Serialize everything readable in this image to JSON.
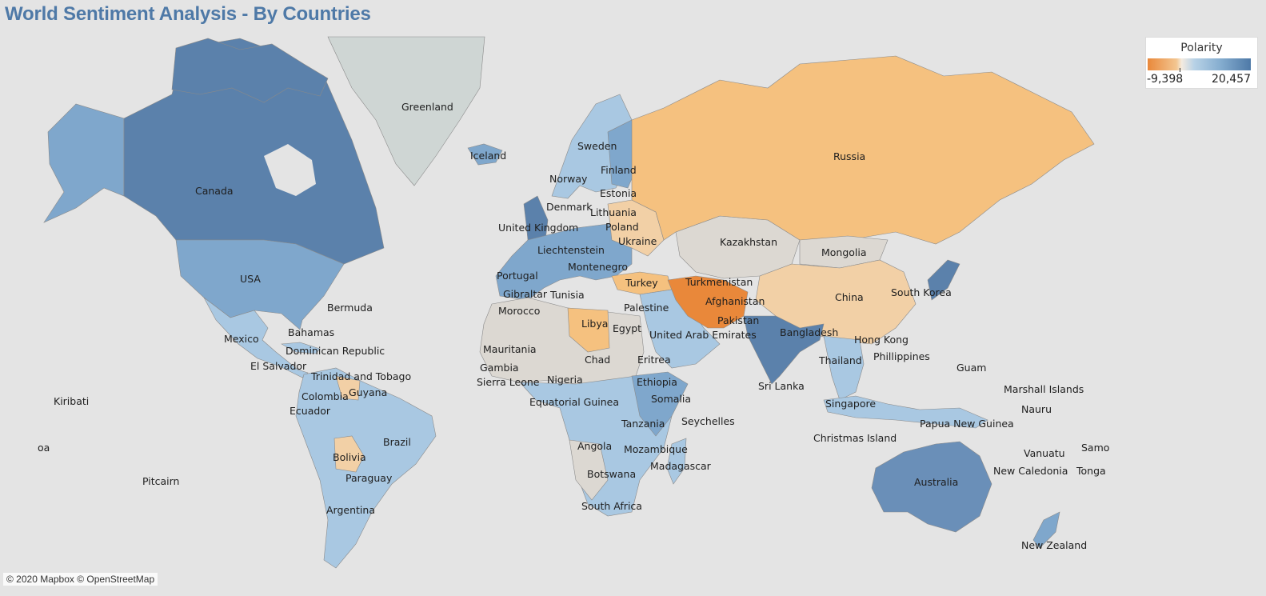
{
  "title": "World Sentiment Analysis - By Countries",
  "legend": {
    "title": "Polarity",
    "min": "-9,398",
    "max": "20,457"
  },
  "attribution": "© 2020 Mapbox © OpenStreetMap",
  "colors": {
    "strong_positive": "#5b81ab",
    "positive": "#7fa7cc",
    "mild_positive": "#a9c8e2",
    "neutral": "#dcd8d2",
    "mild_negative": "#f2d0a6",
    "negative": "#f5c17f",
    "strong_negative": "#e9883a",
    "greenland": "#cfd6d4"
  },
  "countries": [
    {
      "name": "Greenland"
    },
    {
      "name": "Iceland"
    },
    {
      "name": "Canada"
    },
    {
      "name": "USA"
    },
    {
      "name": "Bermuda"
    },
    {
      "name": "Mexico"
    },
    {
      "name": "Bahamas"
    },
    {
      "name": "Dominican Republic"
    },
    {
      "name": "El Salvador"
    },
    {
      "name": "Trinidad and Tobago"
    },
    {
      "name": "Colombia"
    },
    {
      "name": "Guyana"
    },
    {
      "name": "Ecuador"
    },
    {
      "name": "Brazil"
    },
    {
      "name": "Bolivia"
    },
    {
      "name": "Paraguay"
    },
    {
      "name": "Argentina"
    },
    {
      "name": "Kiribati"
    },
    {
      "name": "Pitcairn"
    },
    {
      "name": "Sweden"
    },
    {
      "name": "Finland"
    },
    {
      "name": "Norway"
    },
    {
      "name": "Estonia"
    },
    {
      "name": "Denmark"
    },
    {
      "name": "Lithuania"
    },
    {
      "name": "United Kingdom"
    },
    {
      "name": "Poland"
    },
    {
      "name": "Ukraine"
    },
    {
      "name": "Liechtenstein"
    },
    {
      "name": "Montenegro"
    },
    {
      "name": "Portugal"
    },
    {
      "name": "Turkey"
    },
    {
      "name": "Gibraltar"
    },
    {
      "name": "Tunisia"
    },
    {
      "name": "Morocco"
    },
    {
      "name": "Palestine"
    },
    {
      "name": "Libya"
    },
    {
      "name": "Egypt"
    },
    {
      "name": "Mauritania"
    },
    {
      "name": "Chad"
    },
    {
      "name": "Gambia"
    },
    {
      "name": "Eritrea"
    },
    {
      "name": "Nigeria"
    },
    {
      "name": "Sierra Leone"
    },
    {
      "name": "Ethiopia"
    },
    {
      "name": "Equatorial Guinea"
    },
    {
      "name": "Somalia"
    },
    {
      "name": "Tanzania"
    },
    {
      "name": "Seychelles"
    },
    {
      "name": "Angola"
    },
    {
      "name": "Mozambique"
    },
    {
      "name": "Madagascar"
    },
    {
      "name": "Botswana"
    },
    {
      "name": "South Africa"
    },
    {
      "name": "Russia"
    },
    {
      "name": "Kazakhstan"
    },
    {
      "name": "Mongolia"
    },
    {
      "name": "Turkmenistan"
    },
    {
      "name": "China"
    },
    {
      "name": "South Korea"
    },
    {
      "name": "Afghanistan"
    },
    {
      "name": "Pakistan"
    },
    {
      "name": "United Arab Emirates"
    },
    {
      "name": "Bangladesh"
    },
    {
      "name": "Hong Kong"
    },
    {
      "name": "Thailand"
    },
    {
      "name": "Phillippines"
    },
    {
      "name": "Guam"
    },
    {
      "name": "Sri Lanka"
    },
    {
      "name": "Marshall Islands"
    },
    {
      "name": "Nauru"
    },
    {
      "name": "Singapore"
    },
    {
      "name": "Papua New Guinea"
    },
    {
      "name": "Christmas Island"
    },
    {
      "name": "Vanuatu"
    },
    {
      "name": "New Caledonia"
    },
    {
      "name": "Tonga"
    },
    {
      "name": "Samo"
    },
    {
      "name": "Australia"
    },
    {
      "name": "New Zealand"
    },
    {
      "name": "oa"
    }
  ]
}
